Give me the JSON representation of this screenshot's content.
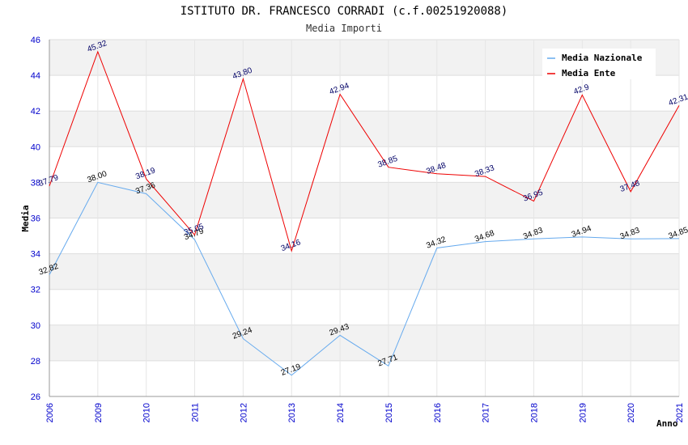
{
  "chart_data": {
    "type": "line",
    "title": "ISTITUTO DR. FRANCESCO CORRADI (c.f.00251920088)",
    "subtitle": "Media Importi",
    "xlabel": "Anno",
    "ylabel": "Media",
    "ylim": [
      26,
      46
    ],
    "yticks": [
      26,
      28,
      30,
      32,
      34,
      36,
      38,
      40,
      42,
      44,
      46
    ],
    "categories": [
      "2006",
      "2009",
      "2010",
      "2011",
      "2012",
      "2013",
      "2014",
      "2015",
      "2016",
      "2017",
      "2018",
      "2019",
      "2020",
      "2021"
    ],
    "legend_position": "top-right",
    "grid": true,
    "series": [
      {
        "name": "Media Nazionale",
        "color": "#66aaee",
        "values": [
          32.82,
          38.0,
          37.36,
          34.79,
          29.24,
          27.19,
          29.43,
          27.71,
          34.32,
          34.68,
          34.83,
          34.94,
          34.83,
          34.85
        ],
        "labels": [
          "32.82",
          "38.00",
          "37.36",
          "34.79",
          "29.24",
          "27.19",
          "29.43",
          "27.71",
          "34.32",
          "34.68",
          "34.83",
          "34.94",
          "34.83",
          "34.85"
        ]
      },
      {
        "name": "Media Ente",
        "color": "#ee0000",
        "values": [
          37.79,
          45.32,
          38.19,
          35.05,
          43.8,
          34.16,
          42.94,
          38.85,
          38.48,
          38.33,
          36.95,
          42.9,
          37.48,
          42.31
        ],
        "labels": [
          "37.79",
          "45.32",
          "38.19",
          "35.05",
          "43.80",
          "34.16",
          "42.94",
          "38.85",
          "38.48",
          "38.33",
          "36.95",
          "42.9",
          "37.48",
          "42.31"
        ]
      }
    ]
  }
}
